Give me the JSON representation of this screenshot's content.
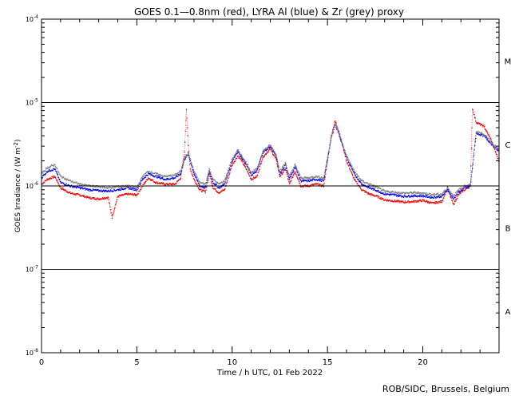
{
  "chart_data": {
    "type": "scatter",
    "title": "GOES 0.1—0.8nm (red), LYRA Al (blue) & Zr (grey) proxy",
    "xlabel": "Time / h UTC, 01 Feb 2022",
    "ylabel_parts": [
      "GOES Irradiance / (W m",
      "-2",
      ")"
    ],
    "xlim": [
      0,
      24
    ],
    "ylim": [
      1e-08,
      0.0001
    ],
    "yscale": "log",
    "x_ticks": [
      0,
      5,
      10,
      15,
      20
    ],
    "x_tick_labels": [
      "0",
      "5",
      "10",
      "15",
      "20"
    ],
    "y_ticks": [
      {
        "value": 0.0001,
        "exp": "-4"
      },
      {
        "value": 1e-05,
        "exp": "-5"
      },
      {
        "value": 1e-06,
        "exp": "-6"
      },
      {
        "value": 1e-07,
        "exp": "-7"
      },
      {
        "value": 1e-08,
        "exp": "-8"
      }
    ],
    "threshold_lines": [
      1e-05,
      1e-06,
      1e-07
    ],
    "flare_classes": [
      {
        "label": "M",
        "value": 3.16e-05
      },
      {
        "label": "C",
        "value": 3.16e-06
      },
      {
        "label": "B",
        "value": 3.16e-07
      },
      {
        "label": "A",
        "value": 3.16e-08
      }
    ],
    "colors": {
      "goes": "#ff0000",
      "lyra_al": "#0000ff",
      "lyra_zr": "#808080"
    },
    "series": [
      {
        "name": "GOES 0.1—0.8nm",
        "color": "#ff0000",
        "x": [
          0,
          0.3,
          0.7,
          1.0,
          1.5,
          2.0,
          2.5,
          3.0,
          3.5,
          3.7,
          4.0,
          4.5,
          5.0,
          5.3,
          5.6,
          6.0,
          6.5,
          7.0,
          7.3,
          7.5,
          7.6,
          7.7,
          7.8,
          8.0,
          8.3,
          8.6,
          8.8,
          9.0,
          9.3,
          9.6,
          10.0,
          10.3,
          10.5,
          10.8,
          11.0,
          11.3,
          11.6,
          12.0,
          12.3,
          12.5,
          12.8,
          13.0,
          13.3,
          13.6,
          14.0,
          14.4,
          14.8,
          15.2,
          15.4,
          15.6,
          16.0,
          16.4,
          16.8,
          17.2,
          17.6,
          18.0,
          18.5,
          19.0,
          19.5,
          20.0,
          20.5,
          21.0,
          21.3,
          21.6,
          21.9,
          22.2,
          22.5,
          22.6,
          22.8,
          23.2,
          23.6,
          24.0
        ],
        "y": [
          1.05e-06,
          1.2e-06,
          1.3e-06,
          9.5e-07,
          8.2e-07,
          7.8e-07,
          7.2e-07,
          7e-07,
          7.3e-07,
          4.2e-07,
          7.5e-07,
          8e-07,
          7.8e-07,
          1e-06,
          1.25e-06,
          1.1e-06,
          1.05e-06,
          1.05e-06,
          1.25e-06,
          2.5e-06,
          8.5e-06,
          3e-06,
          1.6e-06,
          1.2e-06,
          9e-07,
          8.5e-07,
          1.4e-06,
          9.5e-07,
          8.3e-07,
          9e-07,
          1.8e-06,
          2.3e-06,
          2e-06,
          1.5e-06,
          1.2e-06,
          1.3e-06,
          2.2e-06,
          2.8e-06,
          2.1e-06,
          1.3e-06,
          1.6e-06,
          1.05e-06,
          1.5e-06,
          1e-06,
          1e-06,
          1.05e-06,
          1e-06,
          4e-06,
          6e-06,
          4.5e-06,
          2e-06,
          1.2e-06,
          9e-07,
          8e-07,
          7.5e-07,
          6.8e-07,
          6.6e-07,
          6.4e-07,
          6.5e-07,
          6.7e-07,
          6.2e-07,
          6.5e-07,
          9.5e-07,
          6e-07,
          8e-07,
          9e-07,
          1e-06,
          8.5e-06,
          5.8e-06,
          5.2e-06,
          3.5e-06,
          1.95e-06
        ]
      },
      {
        "name": "LYRA Al",
        "color": "#0000ff",
        "x": [
          0,
          0.3,
          0.7,
          1.0,
          1.5,
          2.0,
          2.5,
          3.0,
          3.5,
          4.0,
          4.5,
          5.0,
          5.3,
          5.6,
          6.0,
          6.5,
          7.0,
          7.3,
          7.5,
          7.7,
          8.0,
          8.3,
          8.6,
          8.8,
          9.0,
          9.3,
          9.6,
          10.0,
          10.3,
          10.5,
          10.8,
          11.0,
          11.3,
          11.6,
          12.0,
          12.3,
          12.5,
          12.8,
          13.0,
          13.3,
          13.6,
          14.0,
          14.4,
          14.8,
          15.2,
          15.4,
          15.6,
          16.0,
          16.4,
          16.8,
          17.2,
          17.6,
          18.0,
          18.5,
          19.0,
          19.5,
          20.0,
          20.5,
          21.0,
          21.3,
          21.6,
          21.9,
          22.2,
          22.5,
          22.8,
          23.2,
          23.6,
          24.0
        ],
        "y": [
          1.25e-06,
          1.5e-06,
          1.6e-06,
          1.1e-06,
          1e-06,
          9.5e-07,
          9e-07,
          8.8e-07,
          8.7e-07,
          9e-07,
          9.5e-07,
          9e-07,
          1.2e-06,
          1.4e-06,
          1.3e-06,
          1.2e-06,
          1.25e-06,
          1.4e-06,
          2.1e-06,
          2.4e-06,
          1.4e-06,
          1e-06,
          9.5e-07,
          1.5e-06,
          1.1e-06,
          9.5e-07,
          1.05e-06,
          2e-06,
          2.6e-06,
          2.2e-06,
          1.7e-06,
          1.35e-06,
          1.5e-06,
          2.5e-06,
          3e-06,
          2.3e-06,
          1.4e-06,
          1.8e-06,
          1.2e-06,
          1.7e-06,
          1.15e-06,
          1.15e-06,
          1.2e-06,
          1.15e-06,
          3.8e-06,
          5.5e-06,
          4.2e-06,
          2.2e-06,
          1.4e-06,
          1.05e-06,
          9.5e-07,
          8.8e-07,
          8e-07,
          7.8e-07,
          7.5e-07,
          7.6e-07,
          7.6e-07,
          7.3e-07,
          7.5e-07,
          9e-07,
          7e-07,
          8.5e-07,
          9.5e-07,
          1e-06,
          4.3e-06,
          4e-06,
          3.2e-06,
          2.6e-06
        ]
      },
      {
        "name": "LYRA Zr",
        "color": "#808080",
        "x": [
          0,
          0.3,
          0.7,
          1.0,
          1.5,
          2.0,
          2.5,
          3.0,
          3.5,
          4.0,
          4.5,
          5.0,
          5.3,
          5.6,
          6.0,
          6.5,
          7.0,
          7.3,
          7.5,
          7.7,
          8.0,
          8.3,
          8.6,
          8.8,
          9.0,
          9.3,
          9.6,
          10.0,
          10.3,
          10.5,
          10.8,
          11.0,
          11.3,
          11.6,
          12.0,
          12.3,
          12.5,
          12.8,
          13.0,
          13.3,
          13.6,
          14.0,
          14.4,
          14.8,
          15.2,
          15.4,
          15.6,
          16.0,
          16.4,
          16.8,
          17.2,
          17.6,
          18.0,
          18.5,
          19.0,
          19.5,
          20.0,
          20.5,
          21.0,
          21.3,
          21.6,
          21.9,
          22.2,
          22.5,
          22.8,
          23.2,
          23.6,
          24.0
        ],
        "y": [
          1.4e-06,
          1.65e-06,
          1.8e-06,
          1.3e-06,
          1.15e-06,
          1.05e-06,
          1e-06,
          9.8e-07,
          9.5e-07,
          9.8e-07,
          1e-06,
          9.6e-07,
          1.3e-06,
          1.5e-06,
          1.4e-06,
          1.3e-06,
          1.35e-06,
          1.5e-06,
          2.2e-06,
          2.5e-06,
          1.5e-06,
          1.1e-06,
          1.05e-06,
          1.6e-06,
          1.2e-06,
          1.05e-06,
          1.15e-06,
          2.1e-06,
          2.7e-06,
          2.3e-06,
          1.8e-06,
          1.45e-06,
          1.6e-06,
          2.6e-06,
          3.1e-06,
          2.4e-06,
          1.5e-06,
          1.9e-06,
          1.3e-06,
          1.8e-06,
          1.25e-06,
          1.25e-06,
          1.3e-06,
          1.25e-06,
          3.9e-06,
          5.6e-06,
          4.3e-06,
          2.3e-06,
          1.5e-06,
          1.15e-06,
          1.05e-06,
          9.6e-07,
          8.6e-07,
          8.4e-07,
          8.2e-07,
          8.3e-07,
          8.2e-07,
          7.9e-07,
          8e-07,
          9.5e-07,
          7.6e-07,
          9e-07,
          1e-06,
          1.05e-06,
          4.5e-06,
          4.2e-06,
          3.3e-06,
          2.7e-06
        ]
      }
    ]
  },
  "footer": "ROB/SIDC, Brussels, Belgium"
}
